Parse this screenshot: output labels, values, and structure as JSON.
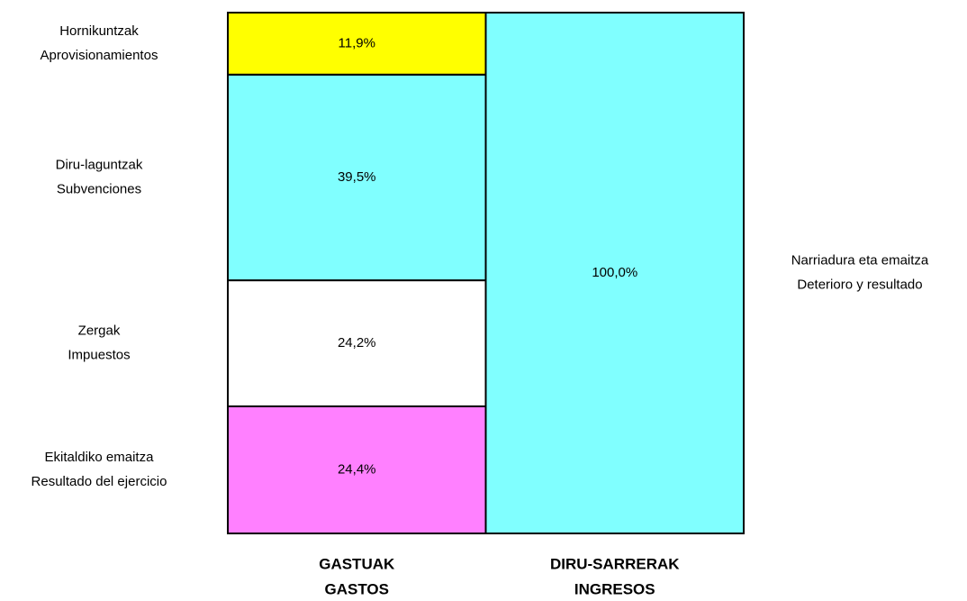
{
  "chart_data": {
    "type": "stacked_bar",
    "categories": [
      [
        "GASTUAK",
        "GASTOS"
      ],
      [
        "DIRU-SARRERAK",
        "INGRESOS"
      ]
    ],
    "series": [
      {
        "name": [
          "Ekitaldiko emaitza",
          "Resultado del ejercicio"
        ],
        "color": "#ff80ff",
        "values": [
          24.4,
          null
        ],
        "value_labels": [
          "24,4%",
          null
        ]
      },
      {
        "name": [
          "Zergak",
          "Impuestos"
        ],
        "color": "#ffffff",
        "values": [
          24.2,
          null
        ],
        "value_labels": [
          "24,2%",
          null
        ]
      },
      {
        "name": [
          "Diru-laguntzak",
          "Subvenciones"
        ],
        "color": "#80ffff",
        "values": [
          39.5,
          null
        ],
        "value_labels": [
          "39,5%",
          null
        ]
      },
      {
        "name": [
          "Hornikuntzak",
          "Aprovisionamientos"
        ],
        "color": "#ffff00",
        "values": [
          11.9,
          null
        ],
        "value_labels": [
          "11,9%",
          null
        ]
      },
      {
        "name": [
          "Narriadura eta emaitza",
          "Deterioro y resultado"
        ],
        "color": "#80ffff",
        "values": [
          null,
          100.0
        ],
        "value_labels": [
          null,
          "100,0%"
        ]
      }
    ]
  }
}
